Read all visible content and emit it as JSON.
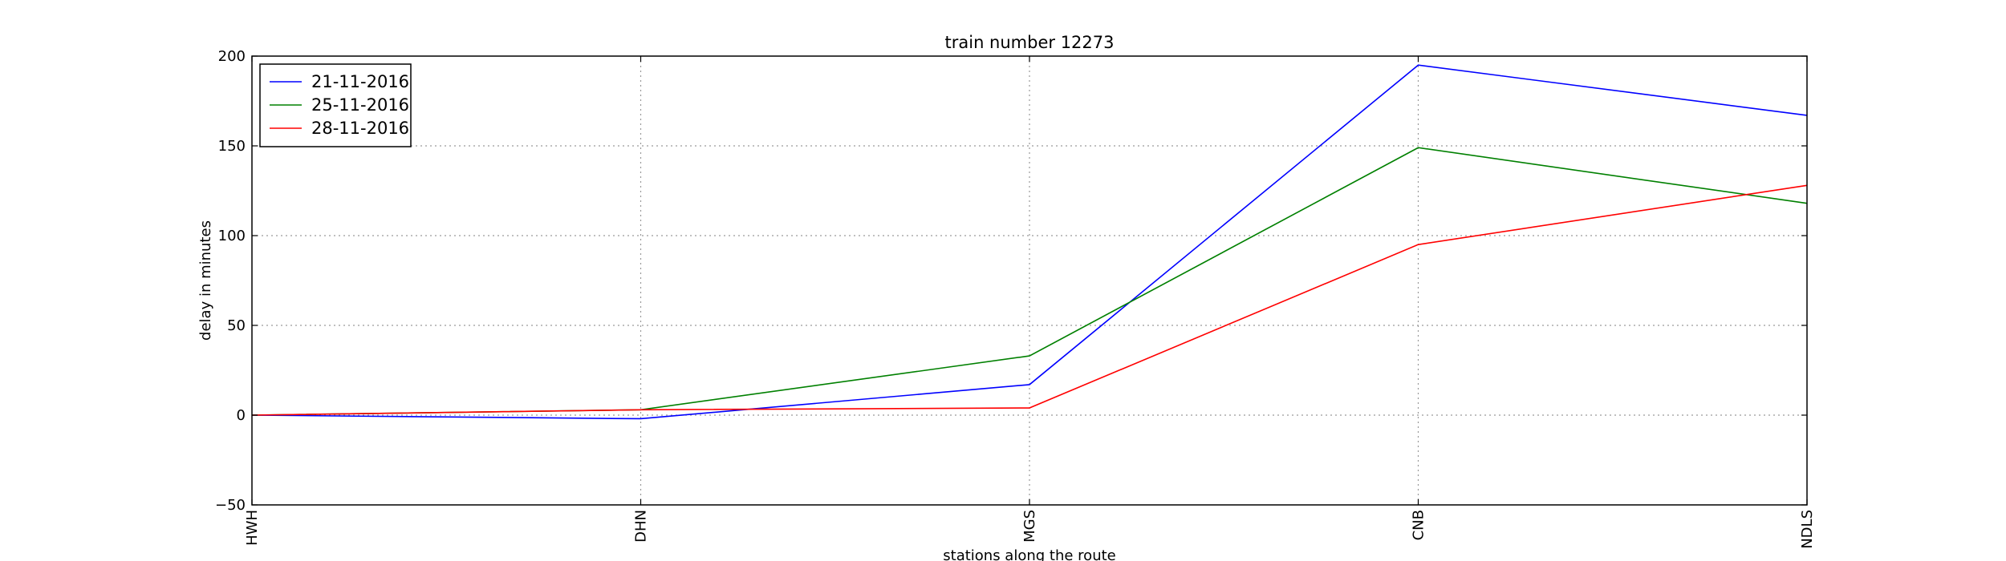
{
  "chart_data": {
    "type": "line",
    "title": "train number 12273",
    "xlabel": "stations along the route",
    "ylabel": "delay in minutes",
    "categories": [
      "HWH",
      "DHN",
      "MGS",
      "CNB",
      "NDLS"
    ],
    "ylim": [
      -50,
      200
    ],
    "yticks": [
      -50,
      0,
      50,
      100,
      150,
      200
    ],
    "grid": true,
    "legend_position": "upper-left",
    "series": [
      {
        "name": "21-11-2016",
        "color": "#0000ff",
        "values": [
          0,
          -2,
          17,
          195,
          167
        ]
      },
      {
        "name": "25-11-2016",
        "color": "#008000",
        "values": [
          0,
          3,
          33,
          149,
          118
        ]
      },
      {
        "name": "28-11-2016",
        "color": "#ff0000",
        "values": [
          0,
          3,
          4,
          95,
          128
        ]
      }
    ]
  }
}
